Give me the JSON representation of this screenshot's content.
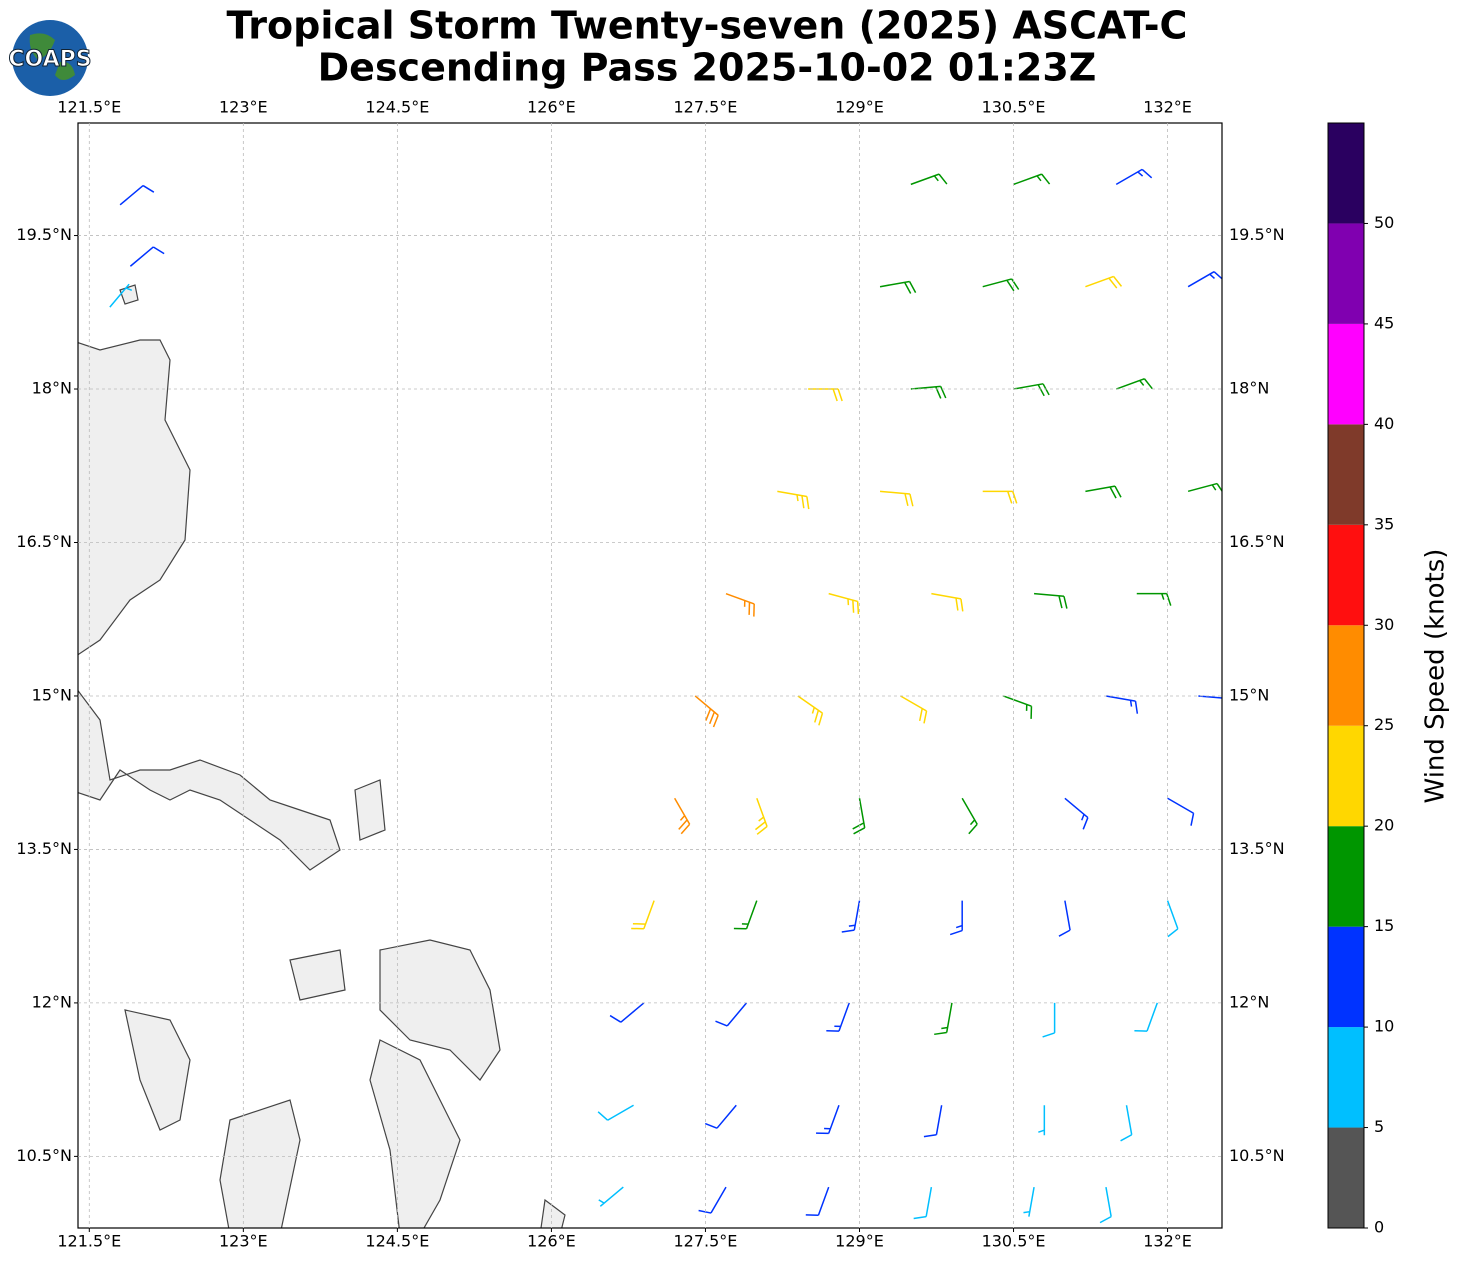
{
  "chart_data": {
    "type": "wind-barbs",
    "title": "Tropical Storm Twenty-seven (2025) ASCAT-C",
    "subtitle": "Descending Pass 2025-10-02 01:23Z",
    "logo": "COAPS",
    "xlim": [
      121.39,
      132.53
    ],
    "ylim": [
      9.8,
      20.6
    ],
    "xticks": [
      {
        "value": 121.5,
        "label": "121.5°E"
      },
      {
        "value": 123,
        "label": "123°E"
      },
      {
        "value": 124.5,
        "label": "124.5°E"
      },
      {
        "value": 126,
        "label": "126°E"
      },
      {
        "value": 127.5,
        "label": "127.5°E"
      },
      {
        "value": 129,
        "label": "129°E"
      },
      {
        "value": 130.5,
        "label": "130.5°E"
      },
      {
        "value": 132,
        "label": "132°E"
      }
    ],
    "yticks": [
      {
        "value": 10.5,
        "label": "10.5°N"
      },
      {
        "value": 12,
        "label": "12°N"
      },
      {
        "value": 13.5,
        "label": "13.5°N"
      },
      {
        "value": 15,
        "label": "15°N"
      },
      {
        "value": 16.5,
        "label": "16.5°N"
      },
      {
        "value": 18,
        "label": "18°N"
      },
      {
        "value": 19.5,
        "label": "19.5°N"
      }
    ],
    "grid": true,
    "barbs": {
      "lon": [
        129.5,
        130.5,
        131.5,
        129.2,
        130.2,
        131.2,
        132.2,
        128.5,
        129.5,
        130.5,
        131.5,
        128.2,
        129.2,
        130.2,
        131.2,
        132.2,
        127.7,
        128.7,
        129.7,
        130.7,
        131.7,
        127.4,
        128.4,
        129.4,
        130.4,
        131.4,
        132.3,
        127.2,
        128.0,
        129.0,
        130.0,
        131.0,
        132.0,
        127.0,
        128.0,
        129.0,
        130.0,
        131.0,
        132.0,
        126.9,
        127.9,
        128.9,
        129.9,
        130.9,
        131.9,
        126.8,
        127.8,
        128.8,
        129.8,
        130.8,
        131.6,
        126.7,
        127.7,
        128.7,
        129.7,
        130.7,
        131.4,
        121.8,
        121.9,
        121.7
      ],
      "lat": [
        20.0,
        20.0,
        20.0,
        19.0,
        19.0,
        19.0,
        19.0,
        18.0,
        18.0,
        18.0,
        18.0,
        17.0,
        17.0,
        17.0,
        17.0,
        17.0,
        16.0,
        16.0,
        16.0,
        16.0,
        16.0,
        15.0,
        15.0,
        15.0,
        15.0,
        15.0,
        15.0,
        14.0,
        14.0,
        14.0,
        14.0,
        14.0,
        14.0,
        13.0,
        13.0,
        13.0,
        13.0,
        13.0,
        13.0,
        12.0,
        12.0,
        12.0,
        12.0,
        12.0,
        12.0,
        11.0,
        11.0,
        11.0,
        11.0,
        11.0,
        11.0,
        10.2,
        10.2,
        10.2,
        10.2,
        10.2,
        10.2,
        19.8,
        19.2,
        18.8
      ],
      "speed": [
        16,
        17,
        14,
        18,
        18,
        21,
        13,
        22,
        19,
        18,
        16,
        23,
        22,
        21,
        18,
        17,
        27,
        24,
        21,
        18,
        16,
        28,
        24,
        22,
        17,
        14,
        13,
        26,
        23,
        18,
        16,
        13,
        12,
        21,
        17,
        14,
        13,
        12,
        9,
        12,
        12,
        13,
        16,
        8,
        9,
        8,
        11,
        13,
        12,
        7,
        8,
        7,
        11,
        12,
        9,
        6,
        8,
        12,
        11,
        7
      ],
      "direction": [
        70,
        70,
        60,
        80,
        75,
        70,
        60,
        90,
        85,
        80,
        70,
        100,
        95,
        90,
        80,
        75,
        110,
        105,
        100,
        95,
        90,
        130,
        125,
        120,
        110,
        100,
        95,
        150,
        160,
        170,
        150,
        130,
        120,
        200,
        200,
        190,
        180,
        170,
        160,
        230,
        220,
        200,
        190,
        180,
        200,
        240,
        220,
        200,
        190,
        180,
        170,
        230,
        210,
        200,
        190,
        190,
        170,
        50,
        50,
        40
      ]
    },
    "colorbar": {
      "label": "Wind Speed (knots)",
      "bounds": [
        0,
        5,
        10,
        15,
        20,
        25,
        30,
        35,
        40,
        45,
        50,
        55
      ],
      "colors": [
        "#555555",
        "#00bfff",
        "#0033ff",
        "#009600",
        "#ffd700",
        "#ff8c00",
        "#ff0f0f",
        "#7f3a2a",
        "#ff00ff",
        "#8000b0",
        "#2a0060"
      ],
      "ticks": [
        0,
        5,
        10,
        15,
        20,
        25,
        30,
        35,
        40,
        45,
        50
      ]
    }
  }
}
